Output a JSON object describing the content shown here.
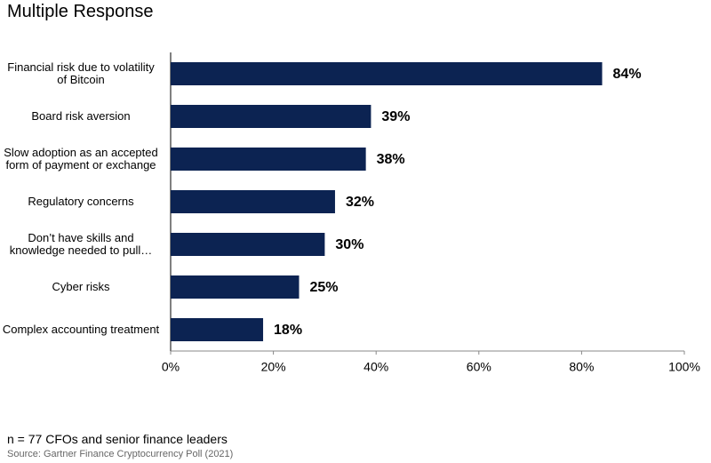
{
  "title": "Multiple Response",
  "chart_data": {
    "type": "barh",
    "categories": [
      "Financial risk due to volatility of Bitcoin",
      "Board risk aversion",
      "Slow adoption as an accepted form of payment or exchange",
      "Regulatory concerns",
      "Don’t have skills and knowledge needed to pull…",
      "Cyber risks",
      "Complex accounting treatment"
    ],
    "values": [
      84,
      39,
      38,
      32,
      30,
      25,
      18
    ],
    "value_labels": [
      "84%",
      "39%",
      "38%",
      "32%",
      "30%",
      "25%",
      "18%"
    ],
    "color": "#0c2352",
    "xlim": [
      0,
      100
    ],
    "xticks": [
      {
        "value": 0,
        "label": "0%"
      },
      {
        "value": 20,
        "label": "20%"
      },
      {
        "value": 40,
        "label": "40%"
      },
      {
        "value": 60,
        "label": "60%"
      },
      {
        "value": 80,
        "label": "80%"
      },
      {
        "value": 100,
        "label": "100%"
      }
    ]
  },
  "note": "n = 77 CFOs and senior finance leaders",
  "source": "Source: Gartner Finance Cryptocurrency Poll (2021)"
}
